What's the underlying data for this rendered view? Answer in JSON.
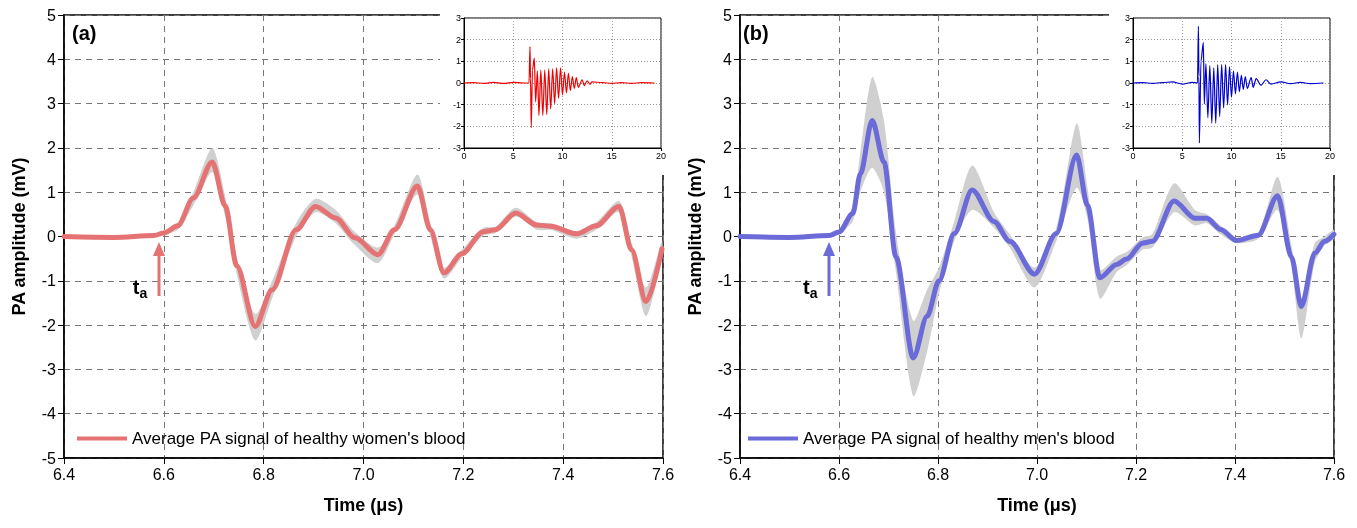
{
  "chart_data": [
    {
      "type": "line",
      "xlabel": "Time (μs)",
      "ylabel": "PA amplitude (mV)",
      "xlim": [
        6.4,
        7.6
      ],
      "ylim": [
        -5,
        5
      ],
      "xticks": [
        6.4,
        6.6,
        6.8,
        {
          "value": 7,
          "label": "7.0"
        },
        7.2,
        7.4,
        7.6
      ],
      "yticks": [
        -5,
        -4,
        -3,
        -2,
        -1,
        0,
        1,
        2,
        3,
        4,
        5
      ],
      "grid": true,
      "legend": "bottom left",
      "marker": "none",
      "annotations": [
        "(a)",
        {
          "text": "t$_{a}$",
          "x": 6.59,
          "y": 0.05
        }
      ],
      "x": [
        6.4,
        6.5,
        6.58,
        6.6,
        6.628,
        6.659,
        6.697,
        6.723,
        6.746,
        6.783,
        6.817,
        6.865,
        6.904,
        6.944,
        6.983,
        7.029,
        7.062,
        7.108,
        7.134,
        7.161,
        7.197,
        7.24,
        7.264,
        7.305,
        7.347,
        7.375,
        7.427,
        7.466,
        7.512,
        7.537,
        7.566,
        7.598
      ],
      "series": [
        {
          "name": "Average PA signal of healthy women's blood",
          "color": "#e57373",
          "values": [
            0,
            -0.02,
            0.02,
            0.08,
            0.24,
            0.87,
            1.68,
            0.69,
            -0.66,
            -2.03,
            -1.2,
            0.15,
            0.68,
            0.42,
            -0.03,
            -0.41,
            0.15,
            1.14,
            0.15,
            -0.82,
            -0.39,
            0.11,
            0.15,
            0.53,
            0.26,
            0.23,
            0.06,
            0.24,
            0.68,
            -0.3,
            -1.47,
            -0.28
          ],
          "lower": [
            -0.03,
            -0.05,
            0,
            0.04,
            0.15,
            0.7,
            1.45,
            0.45,
            -0.85,
            -2.35,
            -1.4,
            0.0,
            0.55,
            0.3,
            -0.2,
            -0.6,
            0.05,
            0.95,
            0.0,
            -0.95,
            -0.48,
            0.02,
            0.08,
            0.45,
            0.15,
            0.15,
            -0.05,
            0.15,
            0.55,
            -0.45,
            -1.8,
            -0.45
          ],
          "upper": [
            0.03,
            0.01,
            0.05,
            0.12,
            0.32,
            1.0,
            2.0,
            0.9,
            -0.45,
            -1.75,
            -1.0,
            0.3,
            0.85,
            0.6,
            0.1,
            -0.25,
            0.25,
            1.4,
            0.3,
            -0.7,
            -0.3,
            0.2,
            0.22,
            0.65,
            0.32,
            0.3,
            0.12,
            0.32,
            0.8,
            -0.15,
            -1.15,
            -0.1
          ]
        }
      ]
    },
    {
      "type": "line",
      "xlim": [
        0,
        20
      ],
      "ylim": [
        -3,
        3
      ],
      "xticks": [
        0,
        5,
        10,
        15,
        20
      ],
      "yticks": [
        -3,
        -2,
        -1,
        0,
        1,
        2,
        3
      ],
      "grid": true,
      "marker": "none",
      "x": [
        0,
        1,
        2,
        3,
        4,
        5,
        6,
        6.6,
        6.7,
        6.75,
        6.83,
        6.95,
        7.14,
        7.27,
        7.45,
        7.61,
        7.8,
        8.0,
        8.2,
        8.4,
        8.6,
        8.8,
        9.0,
        9.2,
        9.4,
        9.6,
        9.8,
        10.0,
        10.2,
        10.4,
        10.6,
        10.8,
        11.0,
        11.2,
        11.4,
        11.6,
        12.0,
        12.2,
        12.5,
        12.8,
        13,
        14,
        15,
        16,
        17,
        18,
        19.3
      ],
      "series": [
        {
          "color": "#ee0000",
          "values": [
            0,
            0.02,
            -0.02,
            0.03,
            -0.02,
            0.03,
            0,
            0,
            1.68,
            0.2,
            -2.06,
            0.6,
            1.15,
            -0.87,
            0.55,
            -1.5,
            0.6,
            -1.5,
            0.6,
            -1.45,
            0.65,
            -1.2,
            0.65,
            -0.95,
            0.7,
            -0.7,
            0.7,
            -0.55,
            0.5,
            -0.45,
            0.45,
            -0.35,
            0.3,
            -0.25,
            0.25,
            -0.2,
            0.15,
            -0.12,
            0.1,
            -0.06,
            0.05,
            0.02,
            -0.02,
            0.02,
            -0.02,
            0.02,
            0
          ]
        }
      ]
    },
    {
      "type": "line",
      "xlabel": "Time (μs)",
      "ylabel": "PA amplitude (mV)",
      "xlim": [
        6.4,
        7.6
      ],
      "ylim": [
        -5,
        5
      ],
      "xticks": [
        6.4,
        6.6,
        6.8,
        {
          "value": 7,
          "label": "7.0"
        },
        7.2,
        7.4,
        7.6
      ],
      "yticks": [
        -5,
        -4,
        -3,
        -2,
        -1,
        0,
        1,
        2,
        3,
        4,
        5
      ],
      "grid": true,
      "legend": "bottom left",
      "marker": "none",
      "annotations": [
        "(b)",
        {
          "text": "t$_{a}$",
          "x": 6.58,
          "y": 0.05
        }
      ],
      "x": [
        6.4,
        6.5,
        6.58,
        6.6,
        6.628,
        6.643,
        6.667,
        6.691,
        6.715,
        6.75,
        6.778,
        6.802,
        6.833,
        6.869,
        6.913,
        6.945,
        6.995,
        7.039,
        7.08,
        7.102,
        7.127,
        7.161,
        7.181,
        7.213,
        7.233,
        7.277,
        7.319,
        7.343,
        7.371,
        7.403,
        7.447,
        7.486,
        7.514,
        7.534,
        7.561,
        7.581,
        7.6
      ],
      "series": [
        {
          "name": "Average PA signal of healthy men's blood",
          "color": "#6a6ad8",
          "values": [
            0,
            -0.02,
            0.02,
            0.1,
            0.52,
            1.41,
            2.62,
            1.68,
            -0.46,
            -2.74,
            -1.8,
            -1.0,
            0.07,
            1.05,
            0.34,
            -0.11,
            -0.85,
            0.07,
            1.84,
            0.7,
            -0.93,
            -0.63,
            -0.51,
            -0.15,
            -0.11,
            0.8,
            0.41,
            0.41,
            0.16,
            -0.09,
            0.03,
            0.92,
            -0.46,
            -1.58,
            -0.38,
            -0.11,
            0.05
          ],
          "lower": [
            -0.03,
            -0.05,
            0,
            0.05,
            0.35,
            1.0,
            1.55,
            1.0,
            -0.8,
            -3.6,
            -2.6,
            -1.3,
            -0.1,
            0.6,
            0.2,
            -0.25,
            -1.15,
            -0.1,
            1.1,
            0.4,
            -1.4,
            -0.8,
            -0.65,
            -0.3,
            -0.25,
            0.55,
            0.25,
            0.3,
            0.05,
            -0.15,
            -0.05,
            0.6,
            -0.7,
            -2.3,
            -0.6,
            -0.2,
            -0.05
          ],
          "upper": [
            0.03,
            0.01,
            0.05,
            0.15,
            0.7,
            1.9,
            3.6,
            2.6,
            0.1,
            -1.9,
            -1.2,
            -0.7,
            0.35,
            1.6,
            0.55,
            0.05,
            -0.7,
            0.2,
            2.55,
            1.1,
            -0.75,
            -0.45,
            -0.35,
            -0.02,
            0.05,
            1.2,
            0.6,
            0.5,
            0.25,
            -0.03,
            0.1,
            1.35,
            -0.2,
            -1.4,
            -0.15,
            0.0,
            0.15
          ]
        }
      ]
    },
    {
      "type": "line",
      "xlim": [
        0,
        20
      ],
      "ylim": [
        -3,
        3
      ],
      "xticks": [
        0,
        5,
        10,
        15,
        20
      ],
      "yticks": [
        -3,
        -2,
        -1,
        0,
        1,
        2,
        3
      ],
      "grid": true,
      "marker": "none",
      "x": [
        0,
        1,
        2,
        3,
        4,
        5,
        6,
        6.55,
        6.64,
        6.69,
        6.74,
        6.9,
        7.14,
        7.24,
        7.4,
        7.6,
        7.8,
        8.0,
        8.2,
        8.4,
        8.6,
        8.8,
        9.0,
        9.2,
        9.4,
        9.6,
        9.8,
        10.0,
        10.2,
        10.4,
        10.6,
        10.8,
        11.0,
        11.2,
        11.4,
        11.6,
        12.0,
        12.2,
        12.5,
        13,
        13.5,
        14,
        15,
        16,
        17,
        18,
        19.3
      ],
      "series": [
        {
          "color": "#0000cc",
          "values": [
            0,
            0.02,
            -0.02,
            0.02,
            0.05,
            -0.05,
            0.03,
            0,
            2.62,
            0.3,
            -2.77,
            1.0,
            1.88,
            -0.97,
            0.9,
            -1.6,
            0.8,
            -1.85,
            0.7,
            -1.85,
            0.85,
            -1.55,
            0.85,
            -1.15,
            0.85,
            -1.0,
            0.75,
            -0.65,
            0.55,
            -0.5,
            0.5,
            -0.4,
            0.35,
            -0.3,
            0.3,
            -0.25,
            0.25,
            -0.2,
            0.2,
            -0.1,
            0.15,
            -0.05,
            0.05,
            -0.03,
            0.03,
            -0.03,
            0
          ]
        }
      ]
    }
  ]
}
